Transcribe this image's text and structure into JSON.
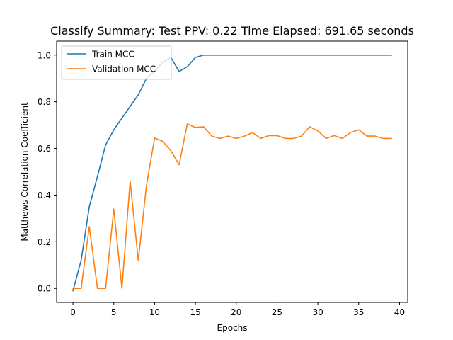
{
  "chart_data": {
    "type": "line",
    "title": "Classify Summary: Test PPV: 0.22 Time Elapsed: 691.65 seconds",
    "xlabel": "Epochs",
    "ylabel": "Matthews Correlation Coefficient",
    "xlim": [
      -2,
      41
    ],
    "ylim": [
      -0.06,
      1.06
    ],
    "x_ticks": [
      0,
      5,
      10,
      15,
      20,
      25,
      30,
      35,
      40
    ],
    "y_ticks": [
      0.0,
      0.2,
      0.4,
      0.6,
      0.8,
      1.0
    ],
    "x_tick_labels": [
      "0",
      "5",
      "10",
      "15",
      "20",
      "25",
      "30",
      "35",
      "40"
    ],
    "y_tick_labels": [
      "0.0",
      "0.2",
      "0.4",
      "0.6",
      "0.8",
      "1.0"
    ],
    "grid": false,
    "legend_position": "top-left",
    "x": [
      0,
      1,
      2,
      3,
      4,
      5,
      6,
      7,
      8,
      9,
      10,
      11,
      12,
      13,
      14,
      15,
      16,
      17,
      18,
      19,
      20,
      21,
      22,
      23,
      24,
      25,
      26,
      27,
      28,
      29,
      30,
      31,
      32,
      33,
      34,
      35,
      36,
      37,
      38,
      39
    ],
    "series": [
      {
        "name": "Train MCC",
        "color": "#1f77b4",
        "values": [
          -0.01,
          0.12,
          0.35,
          0.48,
          0.615,
          0.68,
          0.73,
          0.78,
          0.83,
          0.9,
          0.93,
          0.97,
          0.99,
          0.93,
          0.95,
          0.99,
          1.0,
          1.0,
          1.0,
          1.0,
          1.0,
          1.0,
          1.0,
          1.0,
          1.0,
          1.0,
          1.0,
          1.0,
          1.0,
          1.0,
          1.0,
          1.0,
          1.0,
          1.0,
          1.0,
          1.0,
          1.0,
          1.0,
          1.0,
          1.0
        ]
      },
      {
        "name": "Validation MCC",
        "color": "#ff7f0e",
        "values": [
          0.0,
          0.0,
          0.265,
          0.0,
          0.0,
          0.34,
          0.0,
          0.46,
          0.12,
          0.44,
          0.645,
          0.63,
          0.59,
          0.53,
          0.705,
          0.69,
          0.693,
          0.653,
          0.643,
          0.653,
          0.643,
          0.653,
          0.668,
          0.643,
          0.655,
          0.655,
          0.643,
          0.643,
          0.653,
          0.693,
          0.675,
          0.643,
          0.655,
          0.643,
          0.668,
          0.68,
          0.653,
          0.653,
          0.643,
          0.643
        ]
      }
    ]
  }
}
